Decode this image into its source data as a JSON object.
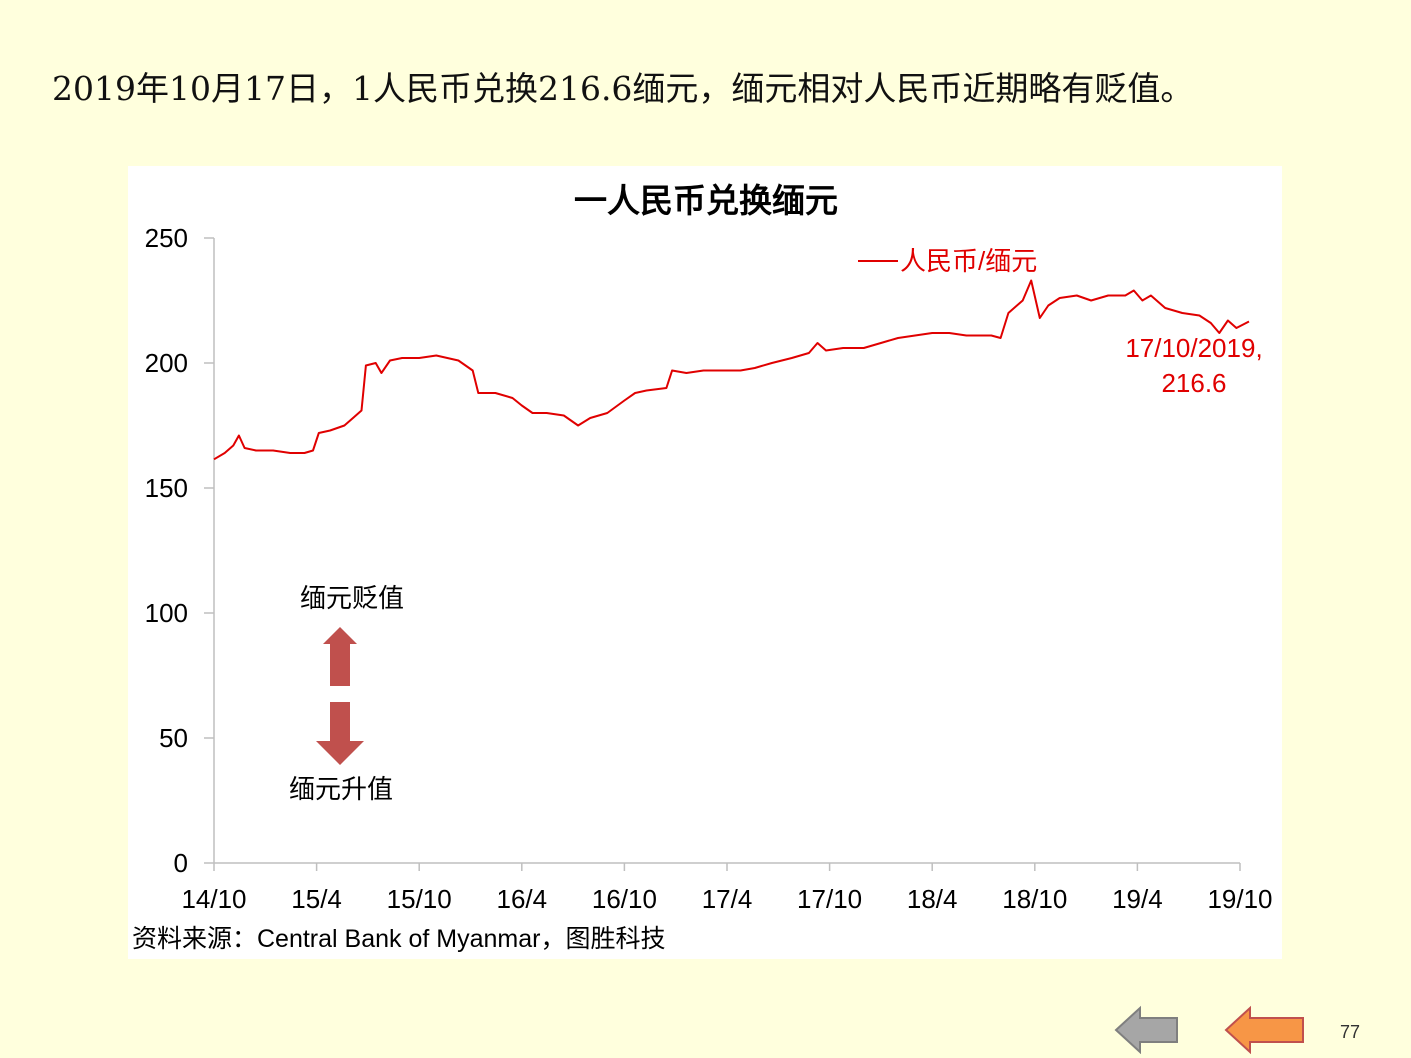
{
  "headline": "2019年10月17日，1人民币兑换216.6缅元，缅元相对人民币近期略有贬值。",
  "source": "资料来源：Central Bank of Myanmar，图胜科技",
  "page_number": "77",
  "nav": {
    "prev_icon": "left-arrow-icon",
    "next_icon": "left-arrow-icon",
    "prev_color": "#A6A6A6",
    "next_color": "#F79646"
  },
  "annotations": {
    "depreciation_label": "缅元贬值",
    "appreciation_label": "缅元升值",
    "arrow_up_icon": "up-arrow-icon",
    "arrow_down_icon": "down-arrow-icon",
    "arrow_color": "#C0504D",
    "last_point_line1": "17/10/2019,",
    "last_point_line2": "216.6"
  },
  "chart_data": {
    "type": "line",
    "title": "一人民币兑换缅元",
    "xlabel": "",
    "ylabel": "",
    "ylim": [
      0,
      250
    ],
    "yticks": [
      "0",
      "50",
      "100",
      "150",
      "200",
      "250"
    ],
    "xticks": [
      "14/10",
      "15/4",
      "15/10",
      "16/4",
      "16/10",
      "17/4",
      "17/10",
      "18/4",
      "18/10",
      "19/4",
      "19/10"
    ],
    "legend": "top-right",
    "grid": false,
    "series": [
      {
        "name": "人民币/缅元",
        "color": "#E00000",
        "points": [
          [
            "2014-10-01",
            161.5
          ],
          [
            "2014-10-20",
            164
          ],
          [
            "2014-11-05",
            167
          ],
          [
            "2014-11-15",
            171
          ],
          [
            "2014-11-25",
            166
          ],
          [
            "2014-12-15",
            165
          ],
          [
            "2015-01-15",
            165
          ],
          [
            "2015-02-15",
            164
          ],
          [
            "2015-03-10",
            164
          ],
          [
            "2015-03-25",
            165
          ],
          [
            "2015-04-05",
            172
          ],
          [
            "2015-04-25",
            173
          ],
          [
            "2015-05-20",
            175
          ],
          [
            "2015-06-05",
            178
          ],
          [
            "2015-06-20",
            181
          ],
          [
            "2015-06-28",
            199
          ],
          [
            "2015-07-15",
            200
          ],
          [
            "2015-07-25",
            196
          ],
          [
            "2015-08-10",
            201
          ],
          [
            "2015-09-01",
            202
          ],
          [
            "2015-10-01",
            202
          ],
          [
            "2015-11-01",
            203
          ],
          [
            "2015-12-10",
            201
          ],
          [
            "2016-01-05",
            197
          ],
          [
            "2016-01-15",
            188
          ],
          [
            "2016-02-15",
            188
          ],
          [
            "2016-03-15",
            186
          ],
          [
            "2016-04-01",
            183
          ],
          [
            "2016-04-20",
            180
          ],
          [
            "2016-05-15",
            180
          ],
          [
            "2016-06-15",
            179
          ],
          [
            "2016-07-10",
            175
          ],
          [
            "2016-08-01",
            178
          ],
          [
            "2016-09-01",
            180
          ],
          [
            "2016-10-01",
            185
          ],
          [
            "2016-10-20",
            188
          ],
          [
            "2016-11-10",
            189
          ],
          [
            "2016-12-15",
            190
          ],
          [
            "2016-12-25",
            197
          ],
          [
            "2017-01-20",
            196
          ],
          [
            "2017-02-20",
            197
          ],
          [
            "2017-03-25",
            197
          ],
          [
            "2017-04-25",
            197
          ],
          [
            "2017-05-20",
            198
          ],
          [
            "2017-06-20",
            200
          ],
          [
            "2017-07-25",
            202
          ],
          [
            "2017-08-25",
            204
          ],
          [
            "2017-09-10",
            208
          ],
          [
            "2017-09-25",
            205
          ],
          [
            "2017-10-25",
            206
          ],
          [
            "2017-12-01",
            206
          ],
          [
            "2018-01-01",
            208
          ],
          [
            "2018-02-01",
            210
          ],
          [
            "2018-03-01",
            211
          ],
          [
            "2018-04-01",
            212
          ],
          [
            "2018-05-01",
            212
          ],
          [
            "2018-06-01",
            211
          ],
          [
            "2018-07-15",
            211
          ],
          [
            "2018-08-01",
            210
          ],
          [
            "2018-08-15",
            220
          ],
          [
            "2018-09-10",
            225
          ],
          [
            "2018-09-25",
            233
          ],
          [
            "2018-10-10",
            218
          ],
          [
            "2018-10-25",
            223
          ],
          [
            "2018-11-15",
            226
          ],
          [
            "2018-12-15",
            227
          ],
          [
            "2019-01-10",
            225
          ],
          [
            "2019-02-10",
            227
          ],
          [
            "2019-03-10",
            227
          ],
          [
            "2019-03-25",
            229
          ],
          [
            "2019-04-10",
            225
          ],
          [
            "2019-04-25",
            227
          ],
          [
            "2019-05-20",
            222
          ],
          [
            "2019-06-20",
            220
          ],
          [
            "2019-07-20",
            219
          ],
          [
            "2019-08-10",
            216
          ],
          [
            "2019-08-25",
            212
          ],
          [
            "2019-09-10",
            217
          ],
          [
            "2019-09-25",
            214
          ],
          [
            "2019-10-17",
            216.6
          ]
        ]
      }
    ]
  }
}
